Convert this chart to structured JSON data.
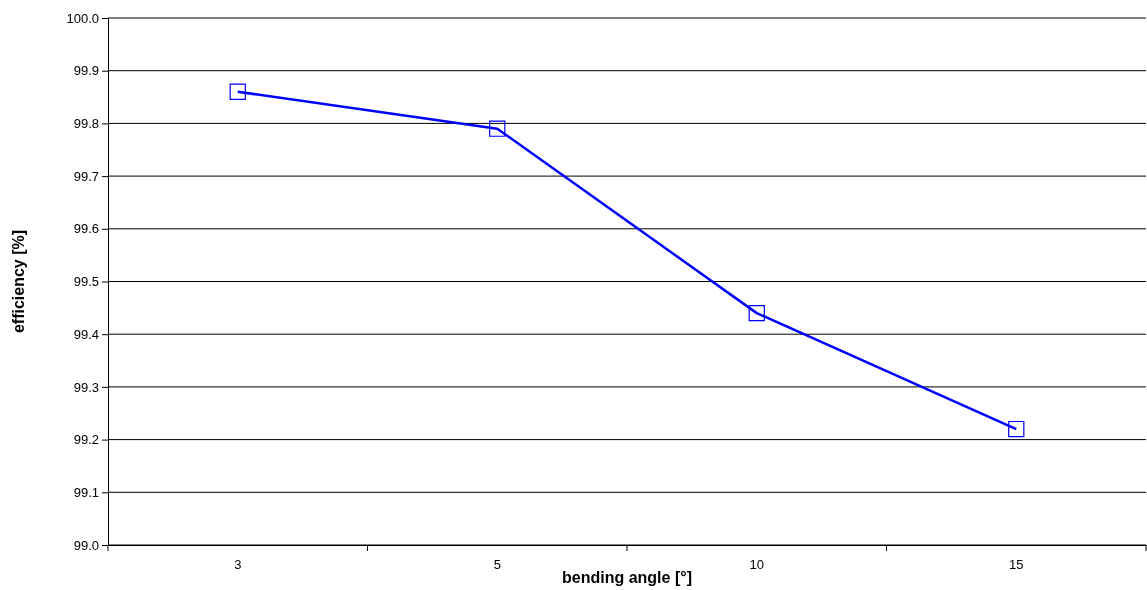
{
  "chart_data": {
    "type": "line",
    "xlabel": "bending angle [°]",
    "ylabel": "efficiency [%]",
    "categories": [
      "3",
      "5",
      "10",
      "15"
    ],
    "series": [
      {
        "color": "#0000ff",
        "values": [
          99.86,
          99.79,
          99.44,
          99.22
        ]
      }
    ],
    "ylim": [
      99.0,
      100.0
    ],
    "yticks": [
      {
        "value": 99.0,
        "label": "99.0"
      },
      {
        "value": 99.1,
        "label": "99.1"
      },
      {
        "value": 99.2,
        "label": "99.2"
      },
      {
        "value": 99.3,
        "label": "99.3"
      },
      {
        "value": 99.4,
        "label": "99.4"
      },
      {
        "value": 99.5,
        "label": "99.5"
      },
      {
        "value": 99.6,
        "label": "99.6"
      },
      {
        "value": 99.7,
        "label": "99.7"
      },
      {
        "value": 99.8,
        "label": "99.8"
      },
      {
        "value": 99.9,
        "label": "99.9"
      },
      {
        "value": 100.0,
        "label": "100.0"
      }
    ],
    "grid": "y",
    "marker": "square",
    "line_style": "solid"
  }
}
